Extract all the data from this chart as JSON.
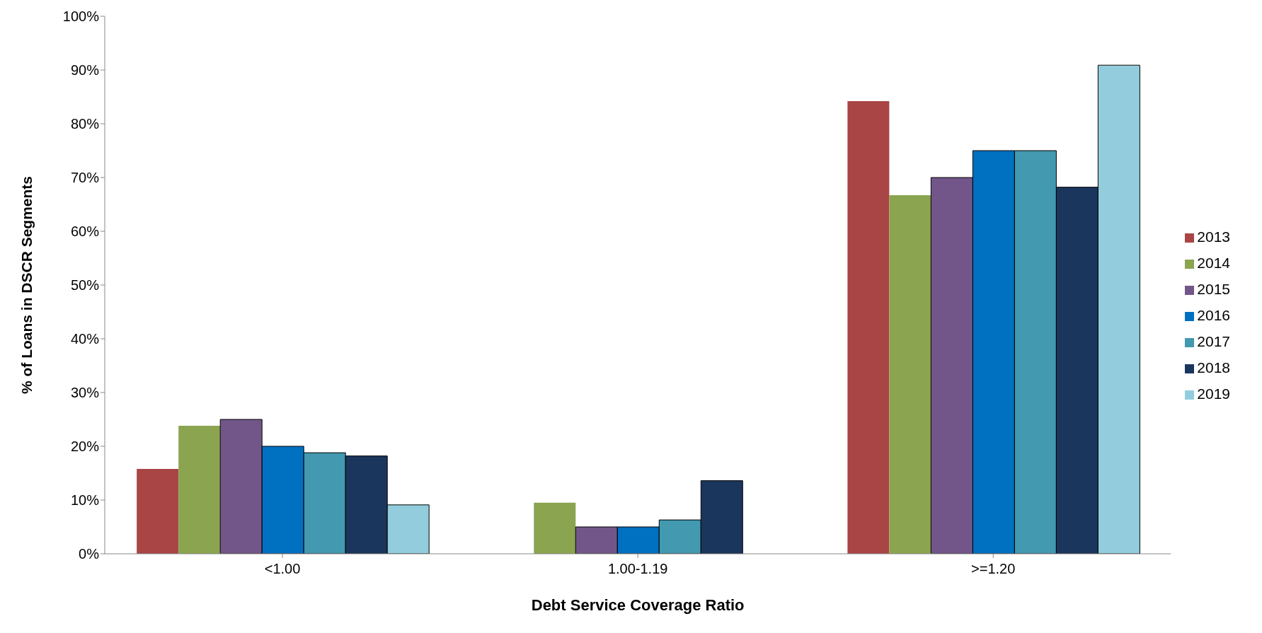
{
  "chart_data": {
    "type": "bar",
    "xlabel": "Debt Service Coverage Ratio",
    "ylabel": "% of Loans in DSCR Segments",
    "categories": [
      "<1.00",
      "1.00-1.19",
      ">=1.20"
    ],
    "series": [
      {
        "name": "2013",
        "color": "#a94545",
        "values": [
          15.8,
          0,
          84.2
        ]
      },
      {
        "name": "2014",
        "color": "#8aa44f",
        "values": [
          23.8,
          9.5,
          66.7
        ]
      },
      {
        "name": "2015",
        "color": "#725689",
        "values": [
          25,
          5,
          70
        ]
      },
      {
        "name": "2016",
        "color": "#0070c0",
        "values": [
          20,
          5,
          75
        ]
      },
      {
        "name": "2017",
        "color": "#4299b0",
        "values": [
          18.8,
          6.3,
          75
        ]
      },
      {
        "name": "2018",
        "color": "#1b365d",
        "values": [
          18.2,
          13.6,
          68.2
        ]
      },
      {
        "name": "2019",
        "color": "#93cddd",
        "values": [
          9.1,
          0,
          90.9
        ]
      }
    ],
    "ylim": [
      0,
      100
    ],
    "yticks": [
      {
        "value": 0,
        "label": "0%"
      },
      {
        "value": 10,
        "label": "10%"
      },
      {
        "value": 20,
        "label": "20%"
      },
      {
        "value": 30,
        "label": "30%"
      },
      {
        "value": 40,
        "label": "40%"
      },
      {
        "value": 50,
        "label": "50%"
      },
      {
        "value": 60,
        "label": "60%"
      },
      {
        "value": 70,
        "label": "70%"
      },
      {
        "value": 80,
        "label": "80%"
      },
      {
        "value": 90,
        "label": "90%"
      },
      {
        "value": 100,
        "label": "100%"
      }
    ],
    "grid": false,
    "legend": "right"
  }
}
